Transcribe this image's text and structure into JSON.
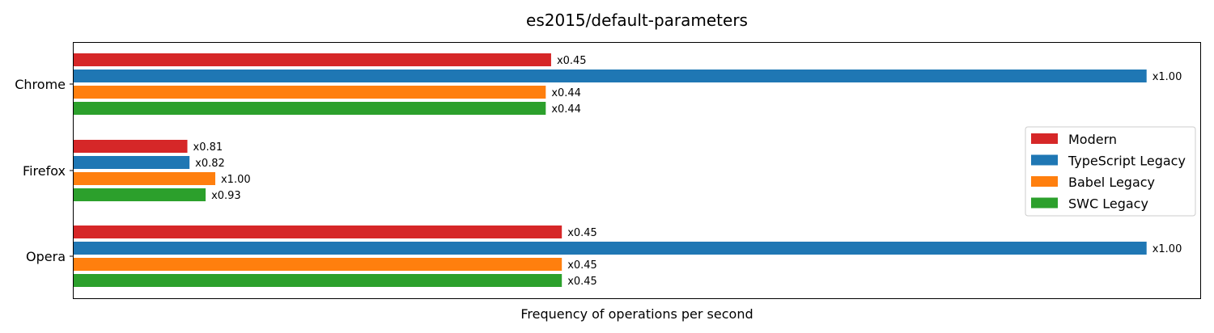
{
  "chart_data": {
    "type": "bar",
    "orientation": "horizontal",
    "title": "es2015/default-parameters",
    "xlabel": "Frequency of operations per second",
    "ylabel": "",
    "categories": [
      "Chrome",
      "Firefox",
      "Opera"
    ],
    "series": [
      {
        "name": "Modern",
        "color": "#d62728",
        "values": [
          0.445,
          0.106,
          0.455
        ],
        "labels": [
          "x0.45",
          "x0.81",
          "x0.45"
        ]
      },
      {
        "name": "TypeScript Legacy",
        "color": "#1f77b4",
        "values": [
          1.0,
          0.108,
          1.0
        ],
        "labels": [
          "x1.00",
          "x0.82",
          "x1.00"
        ]
      },
      {
        "name": "Babel Legacy",
        "color": "#ff7f0e",
        "values": [
          0.44,
          0.132,
          0.455
        ],
        "labels": [
          "x0.44",
          "x1.00",
          "x0.45"
        ]
      },
      {
        "name": "SWC Legacy",
        "color": "#2ca02c",
        "values": [
          0.44,
          0.123,
          0.455
        ],
        "labels": [
          "x0.44",
          "x0.93",
          "x0.45"
        ]
      }
    ],
    "xlim": [
      0,
      1.05
    ],
    "x_ticks_shown": false,
    "grid": false,
    "legend_position": "right"
  }
}
